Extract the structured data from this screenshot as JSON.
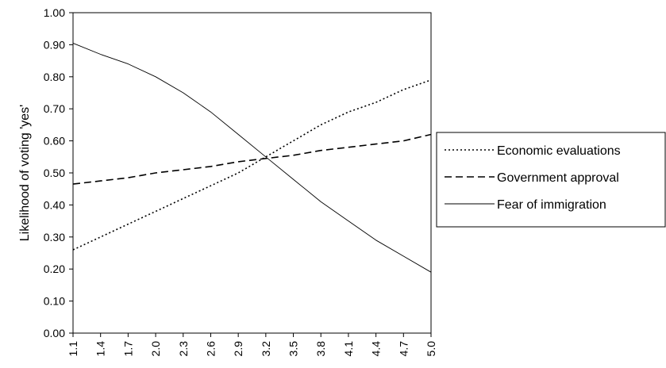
{
  "chart_data": {
    "type": "line",
    "ylabel": "Likelihood of voting 'yes'",
    "xlabel": "",
    "ylim": [
      0,
      1
    ],
    "y_ticks": [
      "0.00",
      "0.10",
      "0.20",
      "0.30",
      "0.40",
      "0.50",
      "0.60",
      "0.70",
      "0.80",
      "0.90",
      "1.00"
    ],
    "x_ticks": [
      "1.1",
      "1.4",
      "1.7",
      "2.0",
      "2.3",
      "2.6",
      "2.9",
      "3.2",
      "3.5",
      "3.8",
      "4.1",
      "4.4",
      "4.7",
      "5.0"
    ],
    "grid": false,
    "legend_position": "right",
    "series": [
      {
        "name": "Economic evaluations",
        "style": "dotted",
        "color": "#000000",
        "x": [
          1.1,
          1.4,
          1.7,
          2.0,
          2.3,
          2.6,
          2.9,
          3.2,
          3.5,
          3.8,
          4.1,
          4.4,
          4.7,
          5.0
        ],
        "values": [
          0.26,
          0.3,
          0.34,
          0.38,
          0.42,
          0.46,
          0.5,
          0.55,
          0.6,
          0.65,
          0.69,
          0.72,
          0.76,
          0.79
        ]
      },
      {
        "name": "Government approval",
        "style": "dashed",
        "color": "#000000",
        "x": [
          1.1,
          1.4,
          1.7,
          2.0,
          2.3,
          2.6,
          2.9,
          3.2,
          3.5,
          3.8,
          4.1,
          4.4,
          4.7,
          5.0
        ],
        "values": [
          0.465,
          0.475,
          0.485,
          0.5,
          0.51,
          0.52,
          0.535,
          0.545,
          0.555,
          0.57,
          0.58,
          0.59,
          0.6,
          0.62
        ]
      },
      {
        "name": "Fear of immigration",
        "style": "solid",
        "color": "#000000",
        "x": [
          1.1,
          1.4,
          1.7,
          2.0,
          2.3,
          2.6,
          2.9,
          3.2,
          3.5,
          3.8,
          4.1,
          4.4,
          4.7,
          5.0
        ],
        "values": [
          0.905,
          0.87,
          0.84,
          0.8,
          0.75,
          0.69,
          0.62,
          0.55,
          0.48,
          0.41,
          0.35,
          0.29,
          0.24,
          0.19
        ]
      }
    ]
  }
}
